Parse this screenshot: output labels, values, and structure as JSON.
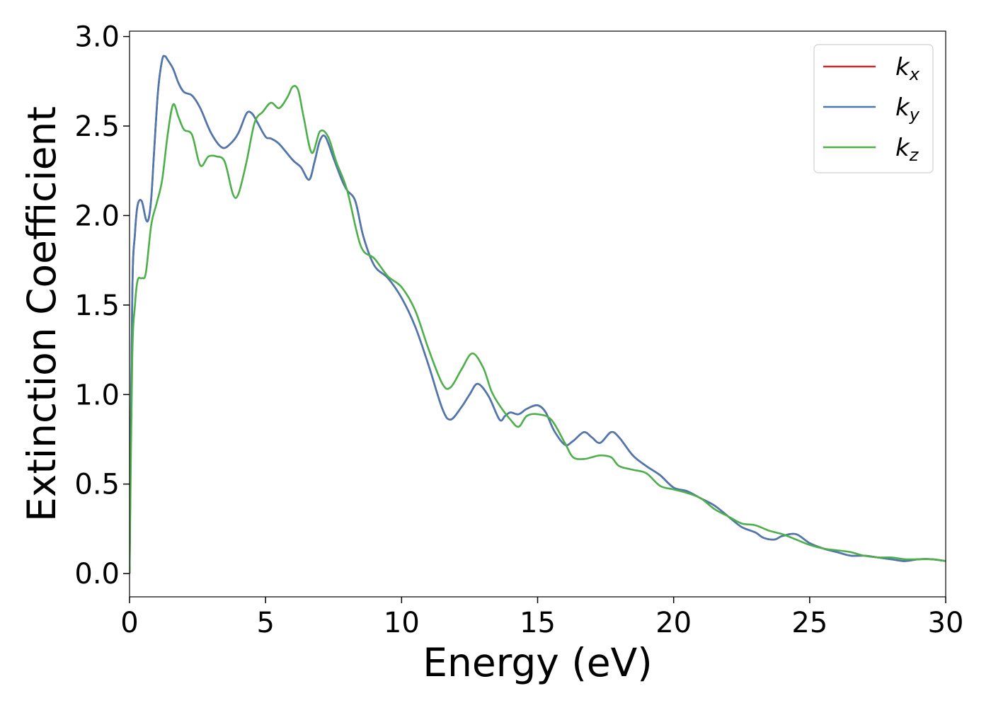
{
  "chart_data": {
    "type": "line",
    "xlabel": "Energy (eV)",
    "ylabel": "Extinction Coefficient",
    "xlim": [
      0,
      30
    ],
    "ylim": [
      -0.13,
      3.03
    ],
    "xticks": [
      0,
      5,
      10,
      15,
      20,
      25,
      30
    ],
    "yticks": [
      0.0,
      0.5,
      1.0,
      1.5,
      2.0,
      2.5,
      3.0
    ],
    "xtick_labels": [
      "0",
      "5",
      "10",
      "15",
      "20",
      "25",
      "30"
    ],
    "ytick_labels": [
      "0.0",
      "0.5",
      "1.0",
      "1.5",
      "2.0",
      "2.5",
      "3.0"
    ],
    "grid": false,
    "legend_position": "top-right",
    "series": [
      {
        "name": "k_x",
        "label_base": "k",
        "label_sub": "x",
        "color": "#d62728",
        "x": [
          0,
          0.1,
          0.2,
          0.3,
          0.45,
          0.6,
          0.7,
          0.8,
          0.9,
          1.05,
          1.2,
          1.3,
          1.4,
          1.6,
          1.8,
          2.0,
          2.3,
          2.6,
          3.0,
          3.4,
          3.7,
          4.0,
          4.3,
          4.5,
          4.7,
          5.0,
          5.2,
          5.5,
          6.0,
          6.3,
          6.6,
          6.8,
          7.0,
          7.2,
          7.5,
          7.8,
          8.0,
          8.3,
          8.6,
          9.0,
          9.5,
          10.0,
          10.5,
          11.0,
          11.5,
          11.8,
          12.2,
          12.5,
          12.8,
          13.2,
          13.6,
          13.8,
          14.0,
          14.3,
          14.6,
          15.0,
          15.3,
          15.6,
          16.0,
          16.3,
          16.7,
          17.0,
          17.3,
          17.7,
          18.0,
          18.5,
          19.0,
          19.5,
          20.0,
          20.5,
          21.0,
          21.5,
          22.0,
          22.5,
          23.0,
          23.3,
          23.7,
          24.0,
          24.5,
          25.0,
          25.5,
          26.0,
          26.5,
          27.0,
          27.5,
          28.0,
          28.5,
          29.0,
          29.5,
          30.0
        ],
        "values": [
          0.0,
          1.55,
          1.9,
          2.06,
          2.08,
          1.98,
          1.98,
          2.1,
          2.35,
          2.7,
          2.87,
          2.89,
          2.87,
          2.82,
          2.74,
          2.69,
          2.67,
          2.6,
          2.46,
          2.38,
          2.4,
          2.46,
          2.57,
          2.57,
          2.52,
          2.44,
          2.43,
          2.4,
          2.31,
          2.27,
          2.2,
          2.3,
          2.42,
          2.44,
          2.32,
          2.2,
          2.14,
          2.08,
          1.88,
          1.72,
          1.65,
          1.54,
          1.38,
          1.16,
          0.92,
          0.86,
          0.93,
          1.0,
          1.06,
          0.99,
          0.86,
          0.88,
          0.9,
          0.89,
          0.92,
          0.94,
          0.9,
          0.8,
          0.72,
          0.74,
          0.79,
          0.76,
          0.73,
          0.79,
          0.76,
          0.66,
          0.6,
          0.55,
          0.48,
          0.46,
          0.42,
          0.38,
          0.32,
          0.26,
          0.23,
          0.2,
          0.19,
          0.21,
          0.22,
          0.17,
          0.14,
          0.12,
          0.1,
          0.1,
          0.09,
          0.08,
          0.07,
          0.08,
          0.08,
          0.07
        ]
      },
      {
        "name": "k_y",
        "label_base": "k",
        "label_sub": "y",
        "color": "#4a78b0",
        "x": [
          0,
          0.1,
          0.2,
          0.3,
          0.45,
          0.6,
          0.7,
          0.8,
          0.9,
          1.05,
          1.2,
          1.3,
          1.4,
          1.6,
          1.8,
          2.0,
          2.3,
          2.6,
          3.0,
          3.4,
          3.7,
          4.0,
          4.3,
          4.5,
          4.7,
          5.0,
          5.2,
          5.5,
          6.0,
          6.3,
          6.6,
          6.8,
          7.0,
          7.2,
          7.5,
          7.8,
          8.0,
          8.3,
          8.6,
          9.0,
          9.5,
          10.0,
          10.5,
          11.0,
          11.5,
          11.8,
          12.2,
          12.5,
          12.8,
          13.2,
          13.6,
          13.8,
          14.0,
          14.3,
          14.6,
          15.0,
          15.3,
          15.6,
          16.0,
          16.3,
          16.7,
          17.0,
          17.3,
          17.7,
          18.0,
          18.5,
          19.0,
          19.5,
          20.0,
          20.5,
          21.0,
          21.5,
          22.0,
          22.5,
          23.0,
          23.3,
          23.7,
          24.0,
          24.5,
          25.0,
          25.5,
          26.0,
          26.5,
          27.0,
          27.5,
          28.0,
          28.5,
          29.0,
          29.5,
          30.0
        ],
        "values": [
          0.0,
          1.55,
          1.9,
          2.06,
          2.08,
          1.98,
          1.98,
          2.1,
          2.35,
          2.7,
          2.87,
          2.89,
          2.87,
          2.82,
          2.74,
          2.69,
          2.67,
          2.6,
          2.46,
          2.38,
          2.4,
          2.46,
          2.57,
          2.57,
          2.52,
          2.44,
          2.43,
          2.4,
          2.31,
          2.27,
          2.2,
          2.3,
          2.42,
          2.44,
          2.32,
          2.2,
          2.14,
          2.08,
          1.88,
          1.72,
          1.65,
          1.54,
          1.38,
          1.16,
          0.92,
          0.86,
          0.93,
          1.0,
          1.06,
          0.99,
          0.86,
          0.88,
          0.9,
          0.89,
          0.92,
          0.94,
          0.9,
          0.8,
          0.72,
          0.74,
          0.79,
          0.76,
          0.73,
          0.79,
          0.76,
          0.66,
          0.6,
          0.55,
          0.48,
          0.46,
          0.42,
          0.38,
          0.32,
          0.26,
          0.23,
          0.2,
          0.19,
          0.21,
          0.22,
          0.17,
          0.14,
          0.12,
          0.1,
          0.1,
          0.09,
          0.08,
          0.07,
          0.08,
          0.08,
          0.07
        ]
      },
      {
        "name": "k_z",
        "label_base": "k",
        "label_sub": "z",
        "color": "#4daf4a",
        "x": [
          0,
          0.1,
          0.2,
          0.3,
          0.45,
          0.6,
          0.8,
          1.0,
          1.2,
          1.4,
          1.6,
          1.8,
          2.0,
          2.3,
          2.6,
          2.9,
          3.2,
          3.5,
          3.8,
          4.0,
          4.3,
          4.6,
          4.9,
          5.2,
          5.5,
          5.8,
          6.0,
          6.2,
          6.4,
          6.7,
          7.0,
          7.3,
          7.6,
          8.0,
          8.5,
          9.0,
          9.5,
          10.0,
          10.5,
          11.0,
          11.5,
          11.8,
          12.2,
          12.6,
          13.0,
          13.3,
          13.6,
          14.0,
          14.3,
          14.6,
          15.0,
          15.5,
          16.0,
          16.3,
          16.7,
          17.0,
          17.3,
          17.7,
          18.0,
          18.5,
          19.0,
          19.5,
          20.0,
          20.5,
          21.0,
          21.5,
          22.0,
          22.5,
          23.0,
          23.5,
          24.0,
          24.5,
          25.0,
          25.5,
          26.0,
          26.5,
          27.0,
          27.5,
          28.0,
          28.5,
          29.0,
          29.5,
          30.0
        ],
        "values": [
          0.0,
          1.2,
          1.5,
          1.64,
          1.65,
          1.68,
          1.95,
          2.07,
          2.2,
          2.45,
          2.62,
          2.55,
          2.48,
          2.45,
          2.28,
          2.33,
          2.33,
          2.3,
          2.12,
          2.12,
          2.3,
          2.52,
          2.58,
          2.63,
          2.6,
          2.66,
          2.72,
          2.7,
          2.55,
          2.35,
          2.47,
          2.44,
          2.3,
          2.14,
          1.83,
          1.76,
          1.66,
          1.6,
          1.47,
          1.25,
          1.06,
          1.04,
          1.14,
          1.23,
          1.15,
          1.02,
          0.94,
          0.86,
          0.82,
          0.88,
          0.89,
          0.86,
          0.73,
          0.65,
          0.64,
          0.65,
          0.66,
          0.65,
          0.6,
          0.58,
          0.56,
          0.49,
          0.47,
          0.45,
          0.42,
          0.36,
          0.32,
          0.28,
          0.27,
          0.24,
          0.22,
          0.19,
          0.16,
          0.14,
          0.13,
          0.12,
          0.1,
          0.09,
          0.09,
          0.08,
          0.08,
          0.08,
          0.07
        ]
      }
    ]
  }
}
